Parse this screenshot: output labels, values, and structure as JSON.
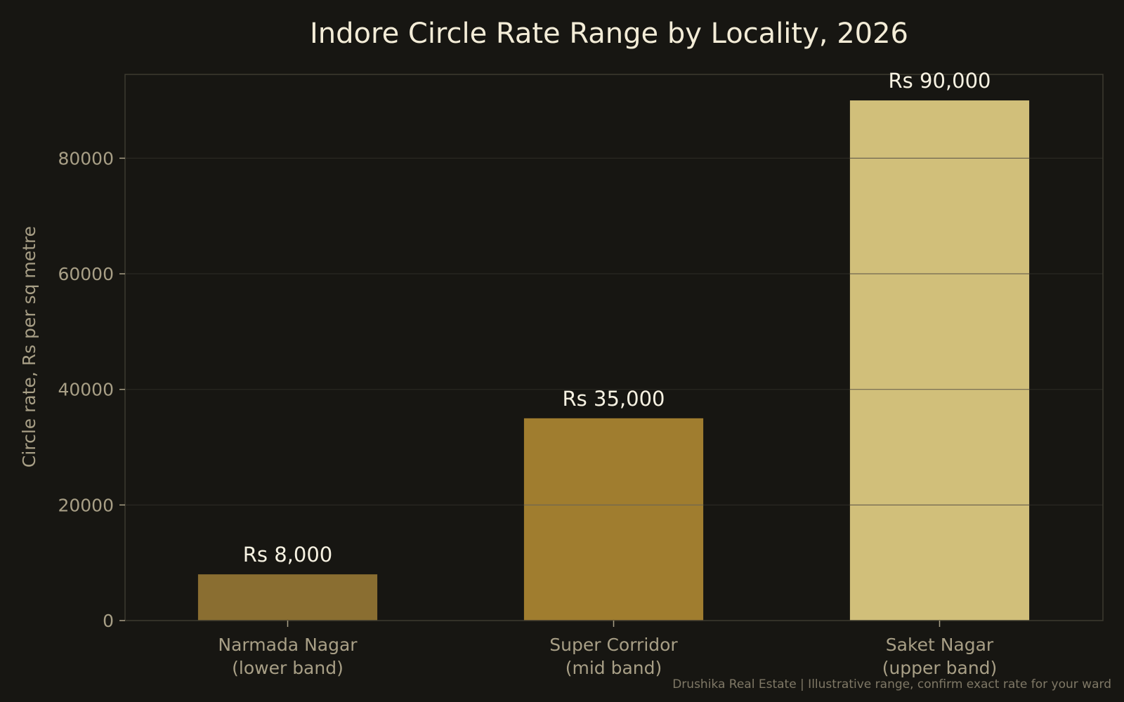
{
  "chart_data": {
    "type": "bar",
    "title": "Indore Circle Rate Range by Locality, 2026",
    "xlabel": "",
    "ylabel": "Circle rate, Rs per sq metre",
    "categories": [
      [
        "Narmada Nagar",
        "(lower band)"
      ],
      [
        "Super Corridor",
        "(mid band)"
      ],
      [
        "Saket Nagar",
        "(upper band)"
      ]
    ],
    "values": [
      8000,
      35000,
      90000
    ],
    "data_labels": [
      "Rs 8,000",
      "Rs 35,000",
      "Rs 90,000"
    ],
    "bar_colors": [
      "#8a6e31",
      "#a07d2f",
      "#d1bf7a"
    ],
    "yticks": [
      0,
      20000,
      40000,
      60000,
      80000
    ],
    "ylim": [
      0,
      94500
    ],
    "grid": true,
    "legend": "none"
  },
  "footer": "Drushika Real Estate | Illustrative range, confirm exact rate for your ward",
  "colors": {
    "background": "#171612",
    "axes_border": "#3d3a30",
    "grid": "#2a2822",
    "grid_over_bar": "#6f6750"
  }
}
